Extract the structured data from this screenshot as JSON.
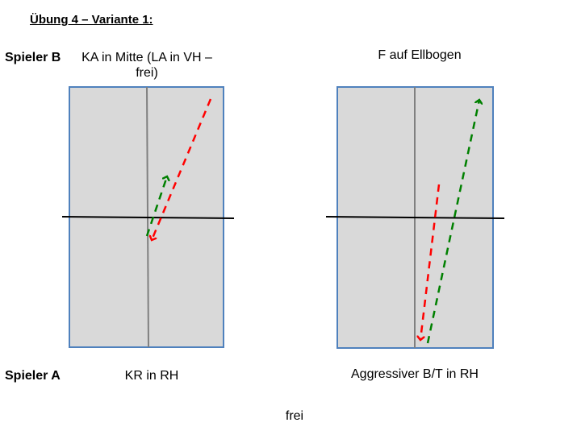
{
  "title": "Übung 4 – Variante 1:",
  "player_b": {
    "label": "Spieler B",
    "left_stroke": "KA in Mitte (LA in VH – frei)",
    "right_stroke": "F auf Ellbogen"
  },
  "player_a": {
    "label": "Spieler A",
    "left_stroke": "KR in RH",
    "right_stroke": "Aggressiver B/T in RH"
  },
  "footer": "frei",
  "colors": {
    "table_fill": "#d9d9d9",
    "table_border": "#4f81bd",
    "center_line": "#808080",
    "net": "#000000",
    "arrow_red": "#ff0000",
    "arrow_green": "#008000"
  }
}
